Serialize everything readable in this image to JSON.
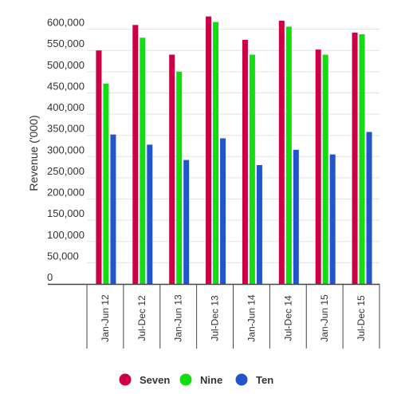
{
  "chart_data": {
    "type": "bar",
    "title": "",
    "xlabel": "",
    "ylabel": "Revenue ('000)",
    "ylim": [
      0,
      650000
    ],
    "yticks": [
      0,
      50000,
      100000,
      150000,
      200000,
      250000,
      300000,
      350000,
      400000,
      450000,
      500000,
      550000,
      600000
    ],
    "ytick_labels": [
      "0",
      "50,000",
      "100,000",
      "150,000",
      "200,000",
      "250,000",
      "300,000",
      "350,000",
      "400,000",
      "450,000",
      "500,000",
      "550,000",
      "600,000"
    ],
    "categories": [
      "Jan-Jun 12",
      "Jul-Dec 12",
      "Jan-Jun 13",
      "Jul-Dec 13",
      "Jan-Jun 14",
      "Jul-Dec 14",
      "Jan-Jun 15",
      "Jul-Dec 15"
    ],
    "series": [
      {
        "name": "Seven",
        "color": "#cc0044",
        "values": [
          550000,
          610000,
          540000,
          630000,
          575000,
          620000,
          552000,
          592000
        ]
      },
      {
        "name": "Nine",
        "color": "#11dd11",
        "values": [
          472000,
          580000,
          500000,
          617000,
          540000,
          606000,
          540000,
          588000
        ]
      },
      {
        "name": "Ten",
        "color": "#2255cc",
        "values": [
          352000,
          328000,
          292000,
          343000,
          280000,
          316000,
          305000,
          358000
        ]
      }
    ],
    "grid": true,
    "legend_position": "bottom"
  }
}
